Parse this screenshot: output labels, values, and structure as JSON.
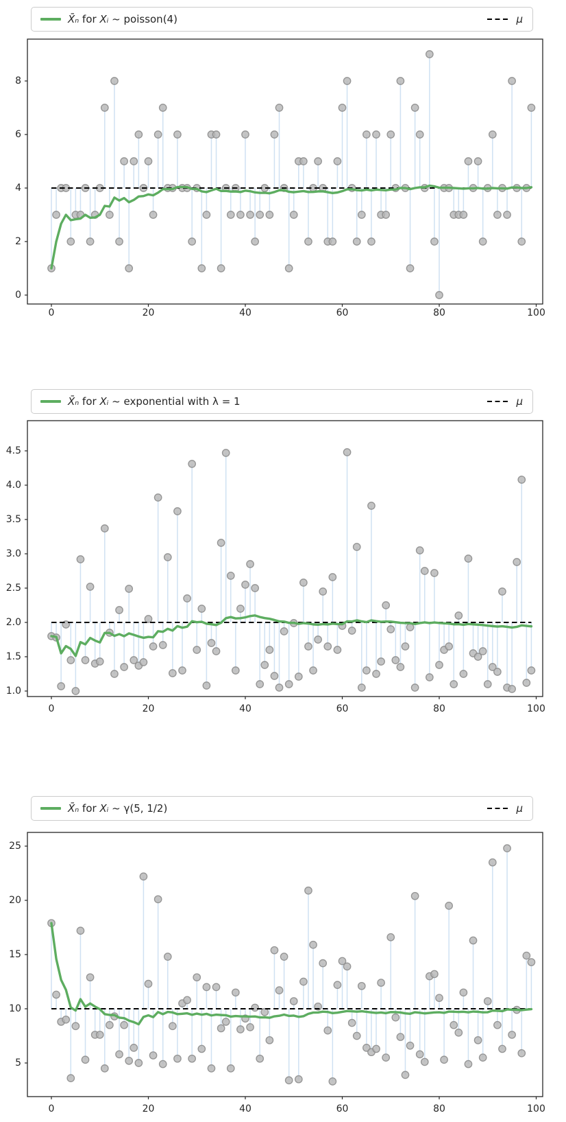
{
  "colors": {
    "green_line": "#5dad60",
    "stem": "#cfe1f2",
    "marker_fill": "#b5b5b5",
    "marker_edge": "#8c8c8c",
    "mu_line": "#000000",
    "axis": "#262626",
    "tick_label": "#262626",
    "legend_border": "#cccccc"
  },
  "chart_data": [
    {
      "type": "scatter",
      "subtype": "stem-scatter with running-mean line and dashed mean reference",
      "legend": {
        "series_parts": [
          {
            "text": "X̄ₙ",
            "italic": true
          },
          {
            "text": " for ",
            "italic": false
          },
          {
            "text": "Xᵢ",
            "italic": true
          },
          {
            "text": " ~ poisson(4)",
            "italic": false
          }
        ],
        "mu_label": "μ",
        "position": "top, full-width box above axes"
      },
      "mu": 4,
      "x_description": "n = 0..99 (observation index)",
      "values": [
        1,
        3,
        4,
        4,
        2,
        3,
        3,
        4,
        2,
        3,
        4,
        7,
        3,
        8,
        2,
        5,
        1,
        5,
        6,
        4,
        5,
        3,
        6,
        7,
        4,
        4,
        6,
        4,
        4,
        2,
        4,
        1,
        3,
        6,
        6,
        1,
        4,
        3,
        4,
        3,
        6,
        3,
        2,
        3,
        4,
        3,
        6,
        7,
        4,
        1,
        3,
        5,
        5,
        2,
        4,
        5,
        4,
        2,
        2,
        5,
        7,
        8,
        4,
        2,
        3,
        6,
        2,
        6,
        3,
        3,
        6,
        4,
        8,
        4,
        1,
        7,
        6,
        4,
        9,
        2,
        0,
        4,
        4,
        3,
        3,
        3,
        5,
        4,
        5,
        2,
        4,
        6,
        3,
        4,
        3,
        8,
        4,
        2,
        4,
        7
      ],
      "derived_series": {
        "name": "running mean X̄ₙ",
        "definition": "cumulative mean of values, drawn as green line"
      },
      "xticks": [
        0,
        20,
        40,
        60,
        80,
        100
      ],
      "ytick_values": [
        0,
        2,
        4,
        6,
        8
      ],
      "ytick_labels": [
        "0",
        "2",
        "4",
        "6",
        "8"
      ],
      "xlim": [
        -5,
        101.3
      ],
      "ylim": [
        -0.33,
        9.6
      ],
      "grid": false
    },
    {
      "type": "scatter",
      "subtype": "stem-scatter with running-mean line and dashed mean reference",
      "legend": {
        "series_parts": [
          {
            "text": "X̄ₙ",
            "italic": true
          },
          {
            "text": " for ",
            "italic": false
          },
          {
            "text": "Xᵢ",
            "italic": true
          },
          {
            "text": " ~ exponential with λ = 1",
            "italic": false
          }
        ],
        "mu_label": "μ",
        "position": "top, full-width box above axes"
      },
      "mu": 2,
      "x_description": "n = 0..99 (observation index)",
      "values": [
        1.8,
        1.78,
        1.07,
        1.97,
        1.45,
        1.0,
        2.92,
        1.45,
        2.52,
        1.4,
        1.43,
        3.37,
        1.85,
        1.25,
        2.18,
        1.35,
        2.49,
        1.45,
        1.37,
        1.42,
        2.05,
        1.65,
        3.82,
        1.67,
        2.95,
        1.26,
        3.62,
        1.3,
        2.35,
        4.31,
        1.6,
        2.2,
        1.08,
        1.7,
        1.58,
        3.16,
        4.47,
        2.68,
        1.3,
        2.2,
        2.55,
        2.85,
        2.5,
        1.1,
        1.38,
        1.6,
        1.22,
        1.05,
        1.87,
        1.1,
        1.99,
        1.21,
        2.58,
        1.65,
        1.3,
        1.75,
        2.45,
        1.65,
        2.66,
        1.6,
        1.95,
        4.48,
        1.88,
        3.1,
        1.05,
        1.3,
        3.7,
        1.25,
        1.43,
        2.25,
        1.9,
        1.45,
        1.35,
        1.65,
        1.93,
        1.05,
        3.05,
        2.75,
        1.2,
        2.72,
        1.38,
        1.6,
        1.65,
        1.1,
        2.1,
        1.25,
        2.93,
        1.55,
        1.5,
        1.58,
        1.1,
        1.35,
        1.28,
        2.45,
        1.05,
        1.03,
        2.88,
        4.08,
        1.12,
        1.3
      ],
      "derived_series": {
        "name": "running mean X̄ₙ",
        "definition": "cumulative mean of values, drawn as green line"
      },
      "xticks": [
        0,
        20,
        40,
        60,
        80,
        100
      ],
      "ytick_values": [
        1.0,
        1.5,
        2.0,
        2.5,
        3.0,
        3.5,
        4.0,
        4.5
      ],
      "ytick_labels": [
        "1.0",
        "1.5",
        "2.0",
        "2.5",
        "3.0",
        "3.5",
        "4.0",
        "4.5"
      ],
      "xlim": [
        -5,
        101.3
      ],
      "ylim": [
        0.92,
        4.94
      ],
      "grid": false
    },
    {
      "type": "scatter",
      "subtype": "stem-scatter with running-mean line and dashed mean reference",
      "legend": {
        "series_parts": [
          {
            "text": "X̄ₙ",
            "italic": true
          },
          {
            "text": " for ",
            "italic": false
          },
          {
            "text": "Xᵢ",
            "italic": true
          },
          {
            "text": " ~ γ(5, 1/2)",
            "italic": false
          }
        ],
        "mu_label": "μ",
        "position": "top, full-width box above axes"
      },
      "mu": 10,
      "x_description": "n = 0..99 (observation index)",
      "values": [
        17.9,
        11.3,
        8.8,
        9.0,
        3.6,
        8.4,
        17.2,
        5.3,
        12.9,
        7.6,
        7.6,
        4.5,
        8.5,
        9.3,
        5.8,
        8.5,
        5.2,
        6.4,
        5.0,
        22.2,
        12.3,
        5.7,
        20.1,
        4.9,
        14.8,
        8.4,
        5.4,
        10.5,
        10.8,
        5.4,
        12.9,
        6.3,
        12.0,
        4.5,
        12.0,
        8.2,
        8.8,
        4.5,
        11.5,
        8.1,
        9.1,
        8.3,
        10.1,
        5.4,
        9.7,
        7.1,
        15.4,
        11.7,
        14.8,
        3.4,
        10.7,
        3.5,
        12.5,
        20.9,
        15.9,
        10.2,
        14.2,
        8.0,
        3.3,
        12.2,
        14.4,
        13.9,
        8.7,
        7.5,
        12.1,
        6.4,
        6.0,
        6.3,
        12.4,
        5.5,
        16.6,
        9.2,
        7.4,
        3.9,
        6.6,
        20.4,
        5.8,
        5.1,
        13.0,
        13.2,
        11.0,
        5.3,
        19.5,
        8.5,
        7.8,
        11.5,
        4.9,
        16.3,
        7.1,
        5.5,
        10.7,
        23.5,
        8.5,
        6.3,
        24.8,
        7.6,
        9.9,
        5.9,
        14.9,
        14.3
      ],
      "derived_series": {
        "name": "running mean X̄ₙ",
        "definition": "cumulative mean of values, drawn as green line"
      },
      "xticks": [
        0,
        20,
        40,
        60,
        80,
        100
      ],
      "ytick_values": [
        5,
        10,
        15,
        20,
        25
      ],
      "ytick_labels": [
        "5",
        "10",
        "15",
        "20",
        "25"
      ],
      "xlim": [
        -5,
        101.3
      ],
      "ylim": [
        1.9,
        26.3
      ],
      "grid": false
    }
  ]
}
